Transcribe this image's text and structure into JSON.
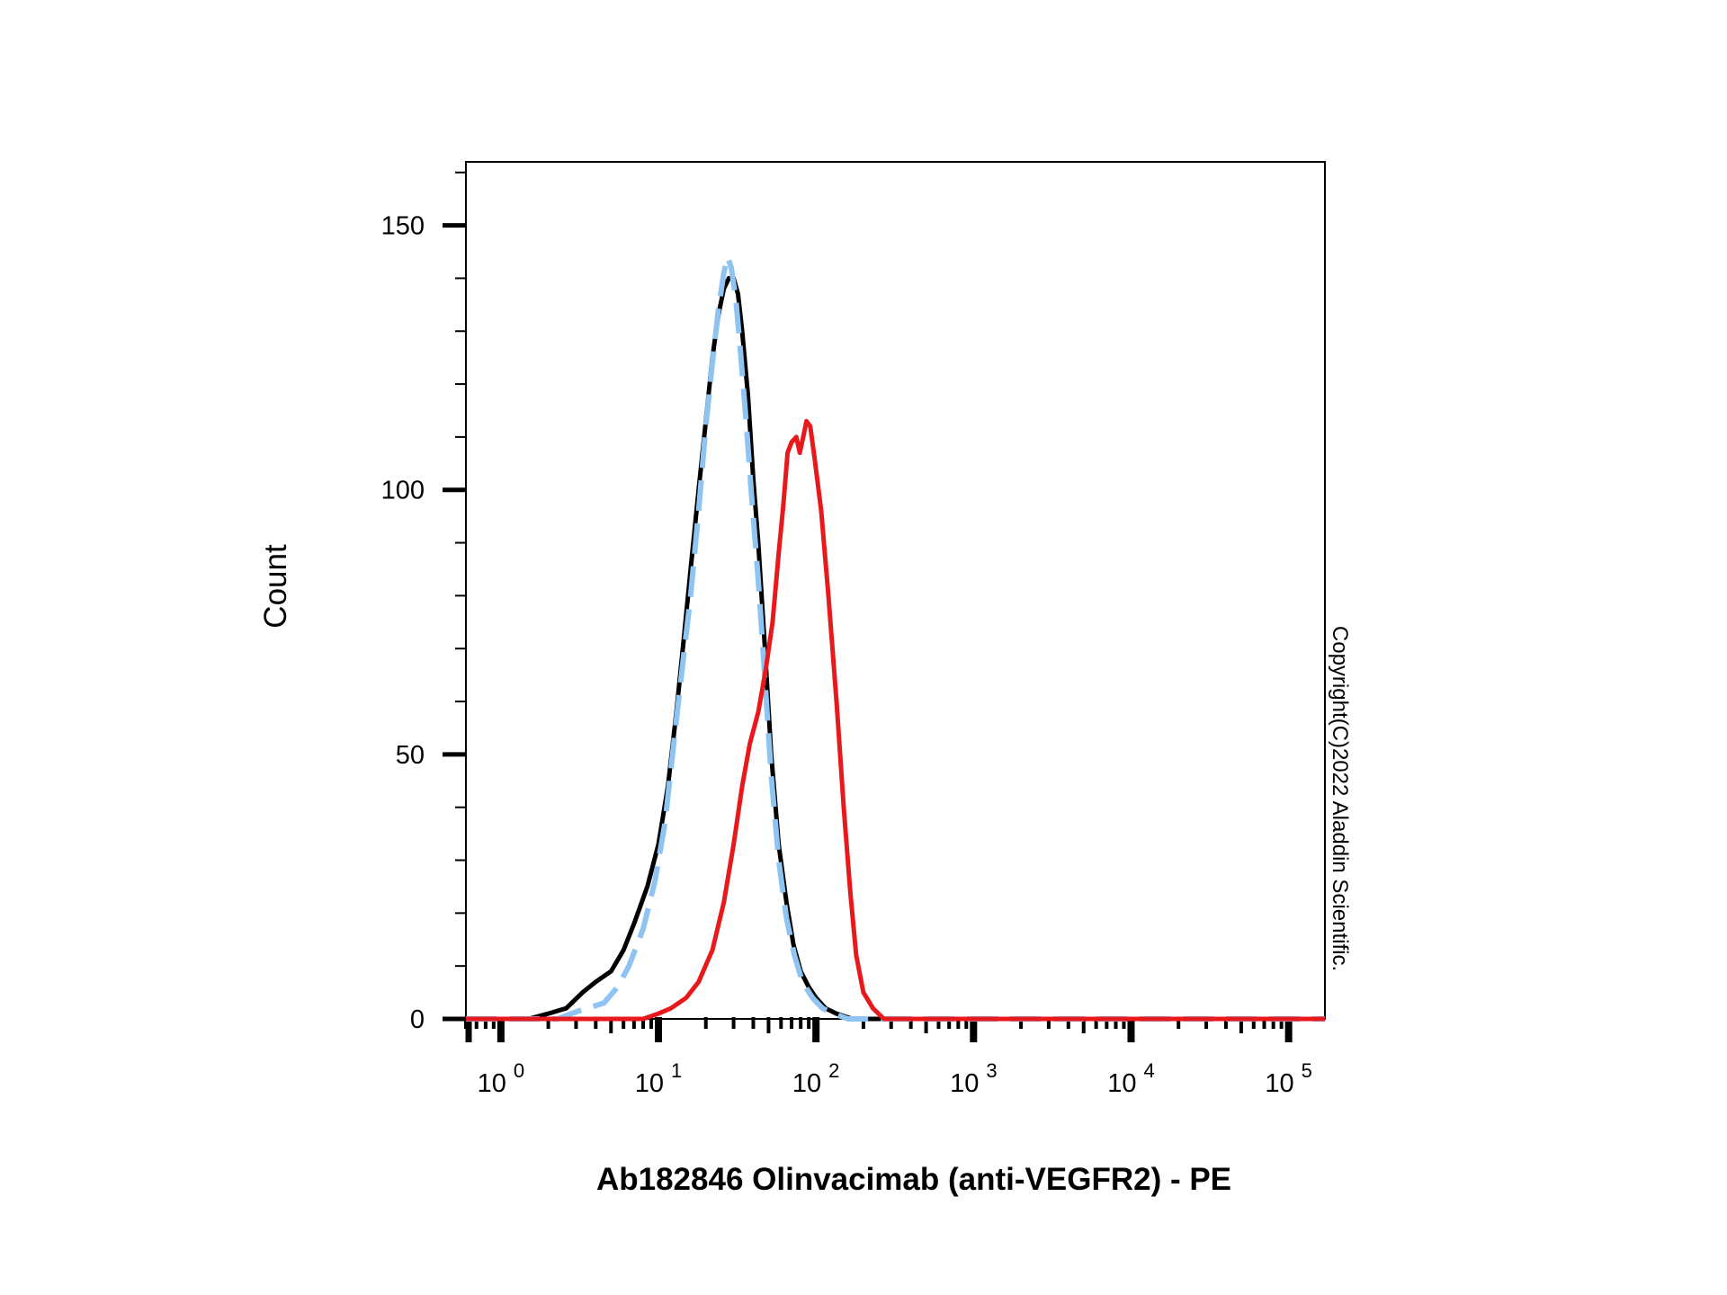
{
  "chart_data": {
    "type": "line",
    "title": "",
    "xlabel": "Ab182846 Olinvacimab (anti-VEGFR2) - PE",
    "ylabel": "Count",
    "x_scale": "log",
    "xlim": [
      0.6,
      170000
    ],
    "ylim": [
      0,
      162
    ],
    "y_ticks": [
      0,
      50,
      100,
      150
    ],
    "x_tick_bases": [
      "10",
      "10",
      "10",
      "10",
      "10",
      "10"
    ],
    "x_tick_exponents": [
      "0",
      "1",
      "2",
      "3",
      "4",
      "5"
    ],
    "x_tick_values": [
      1,
      10,
      100,
      1000,
      10000,
      100000
    ],
    "grid": false,
    "legend": "none",
    "annotation": "Copyright(C)2022 Aladdin Scientific.",
    "series": [
      {
        "color": "#000000",
        "style": "solid",
        "points": [
          [
            0.6,
            0
          ],
          [
            1.5,
            0
          ],
          [
            2.0,
            1
          ],
          [
            2.6,
            2
          ],
          [
            3.3,
            5
          ],
          [
            4.0,
            7
          ],
          [
            5.0,
            9
          ],
          [
            6.0,
            13
          ],
          [
            7.0,
            18
          ],
          [
            8.5,
            25
          ],
          [
            10.0,
            33
          ],
          [
            11.5,
            44
          ],
          [
            13.0,
            58
          ],
          [
            14.5,
            72
          ],
          [
            16.0,
            85
          ],
          [
            18.0,
            100
          ],
          [
            20.0,
            113
          ],
          [
            22.0,
            125
          ],
          [
            24.0,
            133
          ],
          [
            26.0,
            138
          ],
          [
            28.0,
            140
          ],
          [
            30.0,
            140
          ],
          [
            32.0,
            137
          ],
          [
            34.0,
            130
          ],
          [
            37.0,
            118
          ],
          [
            40.0,
            102
          ],
          [
            43.0,
            90
          ],
          [
            47.0,
            72
          ],
          [
            52.0,
            50
          ],
          [
            58.0,
            33
          ],
          [
            65.0,
            22
          ],
          [
            72.0,
            14
          ],
          [
            80.0,
            9
          ],
          [
            90.0,
            6
          ],
          [
            100.0,
            4
          ],
          [
            115.0,
            2
          ],
          [
            135.0,
            1
          ],
          [
            170.0,
            0
          ],
          [
            200000,
            0
          ]
        ]
      },
      {
        "color": "#8fc4f2",
        "style": "dashed",
        "points": [
          [
            0.6,
            0
          ],
          [
            2.3,
            0
          ],
          [
            2.8,
            1
          ],
          [
            3.5,
            2
          ],
          [
            4.5,
            3
          ],
          [
            5.5,
            6
          ],
          [
            6.5,
            10
          ],
          [
            8.0,
            17
          ],
          [
            9.5,
            26
          ],
          [
            11.0,
            37
          ],
          [
            12.5,
            52
          ],
          [
            14.0,
            65
          ],
          [
            16.0,
            80
          ],
          [
            18.0,
            96
          ],
          [
            20.0,
            112
          ],
          [
            22.0,
            124
          ],
          [
            24.0,
            134
          ],
          [
            26.0,
            141
          ],
          [
            27.5,
            144
          ],
          [
            29.0,
            142
          ],
          [
            31.0,
            136
          ],
          [
            33.0,
            127
          ],
          [
            36.0,
            113
          ],
          [
            39.0,
            99
          ],
          [
            43.0,
            83
          ],
          [
            47.0,
            66
          ],
          [
            52.0,
            46
          ],
          [
            58.0,
            30
          ],
          [
            65.0,
            19
          ],
          [
            73.0,
            12
          ],
          [
            82.0,
            7
          ],
          [
            95.0,
            4
          ],
          [
            110.0,
            2
          ],
          [
            130.0,
            1
          ],
          [
            160.0,
            0
          ],
          [
            200000,
            0
          ]
        ]
      },
      {
        "color": "#e8191c",
        "style": "solid",
        "points": [
          [
            0.6,
            0
          ],
          [
            8,
            0
          ],
          [
            10,
            1
          ],
          [
            12,
            2
          ],
          [
            15,
            4
          ],
          [
            18,
            7
          ],
          [
            22,
            13
          ],
          [
            26,
            22
          ],
          [
            30,
            33
          ],
          [
            34,
            44
          ],
          [
            38,
            52
          ],
          [
            43,
            58
          ],
          [
            48,
            66
          ],
          [
            53,
            75
          ],
          [
            58,
            88
          ],
          [
            62,
            97
          ],
          [
            66,
            107
          ],
          [
            70,
            109
          ],
          [
            75,
            110
          ],
          [
            79,
            107
          ],
          [
            83,
            110
          ],
          [
            87,
            113
          ],
          [
            92,
            112
          ],
          [
            98,
            106
          ],
          [
            108,
            96
          ],
          [
            120,
            80
          ],
          [
            135,
            60
          ],
          [
            150,
            40
          ],
          [
            165,
            24
          ],
          [
            180,
            12
          ],
          [
            200,
            5
          ],
          [
            230,
            2
          ],
          [
            270,
            0
          ],
          [
            200000,
            0
          ]
        ]
      }
    ]
  }
}
